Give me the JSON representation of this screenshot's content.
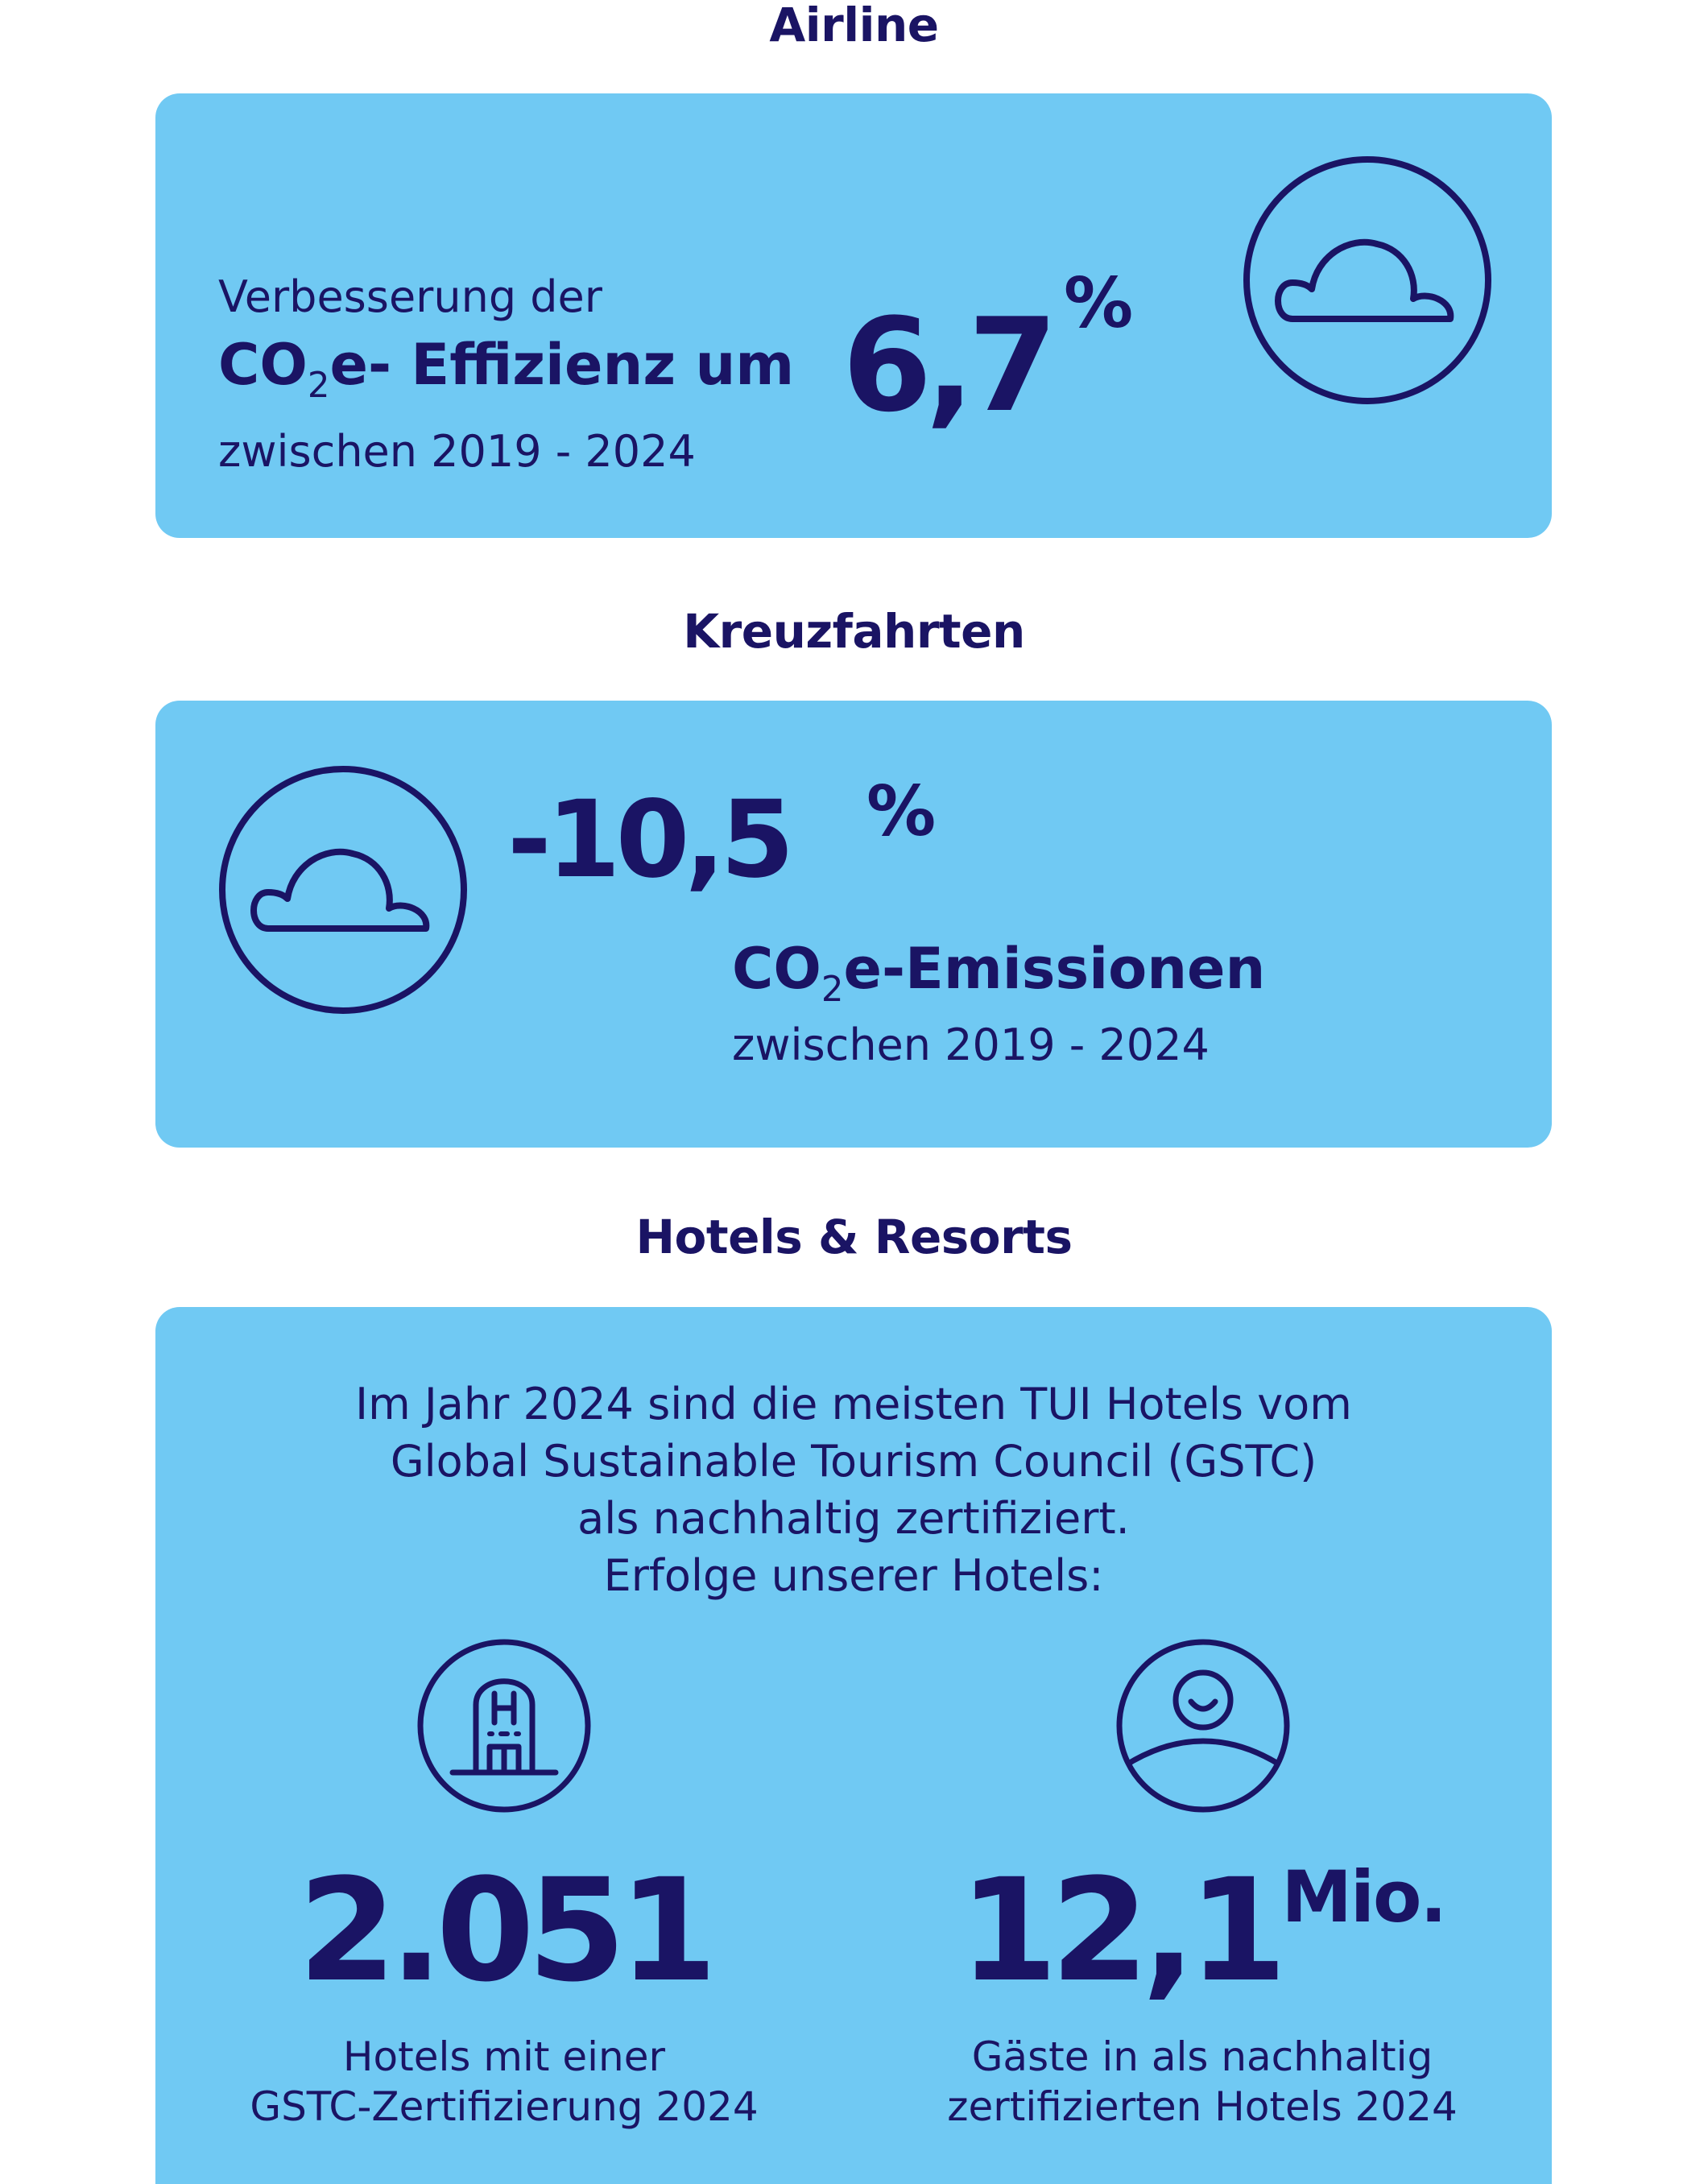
{
  "colors": {
    "card_bg": "#70c9f3",
    "text": "#1a1464",
    "page_bg": "#ffffff"
  },
  "airline": {
    "title": "Airline",
    "line1": "Verbesserung der",
    "co_prefix": "CO",
    "co_sub": "2",
    "line2_rest": "e- Effizienz um",
    "value": "6,7",
    "unit": "%",
    "line3": "zwischen 2019 - 2024",
    "icon": "cloud-icon"
  },
  "cruise": {
    "title": "Kreuzfahrten",
    "value": "-10,5",
    "unit": "%",
    "co_prefix": "CO",
    "co_sub": "2",
    "line1_rest": "e-Emissionen",
    "line2": "zwischen 2019 - 2024",
    "icon": "cloud-icon"
  },
  "hotels": {
    "title": "Hotels & Resorts",
    "intro": [
      "Im Jahr 2024 sind die meisten TUI Hotels vom",
      "Global Sustainable Tourism Council (GSTC)",
      "als nachhaltig zertifiziert.",
      "Erfolge unserer Hotels:"
    ],
    "stats": [
      {
        "icon": "hotel-building-icon",
        "value": "2.051",
        "unit": "",
        "label_lines": [
          "Hotels mit einer",
          "GSTC-Zertifizierung 2024"
        ]
      },
      {
        "icon": "guest-person-icon",
        "value": "12,1",
        "unit": "Mio.",
        "label_lines": [
          "Gäste in als nachhaltig",
          "zertifizierten Hotels 2024"
        ]
      }
    ]
  }
}
